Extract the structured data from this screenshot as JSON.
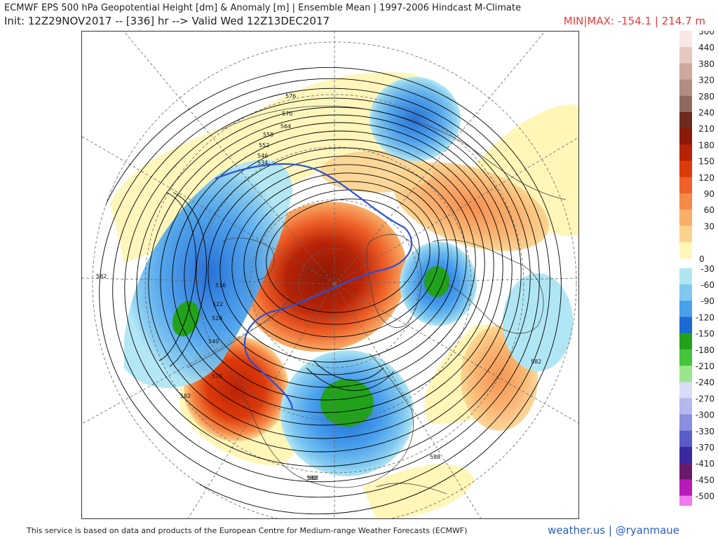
{
  "header": {
    "title": "ECMWF EPS 500 hPa Geopotential Height [dm] & Anomaly [m] | Ensemble Mean | 1997-2006 Hindcast M-Climate",
    "init_line": "Init: 12Z29NOV2017 -- [336] hr --> Valid Wed 12Z13DEC2017",
    "minmax": "MIN|MAX: -154.1 | 214.7 m",
    "minmax_color": "#e8393a"
  },
  "legend": {
    "positive": [
      {
        "label": "500",
        "color": "#f7e8e4"
      },
      {
        "label": "440",
        "color": "#e6c8c0"
      },
      {
        "label": "380",
        "color": "#cca89e"
      },
      {
        "label": "320",
        "color": "#b08c82"
      },
      {
        "label": "280",
        "color": "#8e6a60"
      },
      {
        "label": "240",
        "color": "#6e2a1c"
      },
      {
        "label": "210",
        "color": "#8c1a06"
      },
      {
        "label": "180",
        "color": "#b82206"
      },
      {
        "label": "150",
        "color": "#dd3a0a"
      },
      {
        "label": "120",
        "color": "#ee6028"
      },
      {
        "label": "90",
        "color": "#f58a48"
      },
      {
        "label": "60",
        "color": "#f9ae6a"
      },
      {
        "label": "30",
        "color": "#fcd38e"
      },
      {
        "label": "",
        "color": "#fff6b8"
      }
    ],
    "zero_label": "0",
    "negative": [
      {
        "label": "-30",
        "color": "#b0e6f4"
      },
      {
        "label": "-60",
        "color": "#80c8f0"
      },
      {
        "label": "-90",
        "color": "#4aa0ec"
      },
      {
        "label": "-120",
        "color": "#1c6ad6"
      },
      {
        "label": "-150",
        "color": "#22a21c"
      },
      {
        "label": "-180",
        "color": "#44c43a"
      },
      {
        "label": "-210",
        "color": "#9ae68a"
      },
      {
        "label": "-240",
        "color": "#d8dcf4"
      },
      {
        "label": "-270",
        "color": "#b4b8ec"
      },
      {
        "label": "-300",
        "color": "#8a8ee0"
      },
      {
        "label": "-330",
        "color": "#5a5cc8"
      },
      {
        "label": "-370",
        "color": "#3a2aa0"
      },
      {
        "label": "-410",
        "color": "#6a1a6a"
      },
      {
        "label": "-450",
        "color": "#b81ab8"
      },
      {
        "label": "-500",
        "color": "#f07af0"
      }
    ]
  },
  "map": {
    "contour_labels": [
      "582",
      "582",
      "582",
      "582",
      "576",
      "576",
      "570",
      "564",
      "558",
      "552",
      "546",
      "540",
      "534",
      "528",
      "522",
      "516",
      "588",
      "588"
    ],
    "accent_contour_color": "#2a4fd8"
  },
  "footer": {
    "disclaimer": "This service is based on data and products of the European Centre for Medium-range Weather Forecasts (ECMWF)",
    "brand": "weather.us | @ryanmaue",
    "brand_color": "#2a5cc8"
  }
}
